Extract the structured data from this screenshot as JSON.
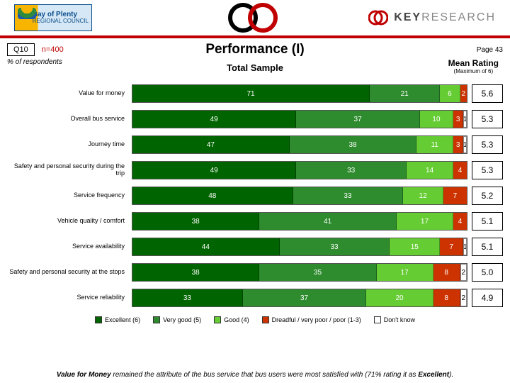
{
  "header": {
    "logo_text_top": "Bay of Plenty",
    "logo_text_bottom": "REGIONAL COUNCIL",
    "brand": "KEYRESEARCH",
    "circle_colors": [
      "#000000",
      "#c00000"
    ]
  },
  "meta": {
    "question": "Q10",
    "n": "n=400",
    "title": "Performance (I)",
    "page": "Page 43",
    "pct_label": "% of respondents",
    "subtitle": "Total Sample",
    "mean_rating_label": "Mean Rating",
    "mean_rating_sub": "(Maximum of 6)"
  },
  "chart": {
    "type": "stacked-bar-horizontal",
    "segment_colors": {
      "excellent": "#006400",
      "very_good": "#2e8b2e",
      "good": "#66cc33",
      "dreadful": "#cc3300",
      "dont_know": "#ffffff"
    },
    "segment_text_colors": {
      "excellent": "#ffffff",
      "very_good": "#ffffff",
      "good": "#ffffff",
      "dreadful": "#ffffff",
      "dont_know": "#000000"
    },
    "rows": [
      {
        "label": "Value for money",
        "values": {
          "excellent": 71,
          "very_good": 21,
          "good": 6,
          "dreadful": 2,
          "dont_know": 0
        },
        "mean": "5.6"
      },
      {
        "label": "Overall bus service",
        "values": {
          "excellent": 49,
          "very_good": 37,
          "good": 10,
          "dreadful": 3,
          "dont_know": 1
        },
        "mean": "5.3"
      },
      {
        "label": "Journey time",
        "values": {
          "excellent": 47,
          "very_good": 38,
          "good": 11,
          "dreadful": 3,
          "dont_know": 1
        },
        "mean": "5.3"
      },
      {
        "label": "Safety and personal security during the trip",
        "values": {
          "excellent": 49,
          "very_good": 33,
          "good": 14,
          "dreadful": 4,
          "dont_know": 0
        },
        "mean": "5.3"
      },
      {
        "label": "Service frequency",
        "values": {
          "excellent": 48,
          "very_good": 33,
          "good": 12,
          "dreadful": 7,
          "dont_know": 0
        },
        "mean": "5.2"
      },
      {
        "label": "Vehicle quality / comfort",
        "values": {
          "excellent": 38,
          "very_good": 41,
          "good": 17,
          "dreadful": 4,
          "dont_know": 0
        },
        "mean": "5.1"
      },
      {
        "label": "Service availability",
        "values": {
          "excellent": 44,
          "very_good": 33,
          "good": 15,
          "dreadful": 7,
          "dont_know": 1
        },
        "mean": "5.1"
      },
      {
        "label": "Safety and personal security at the stops",
        "values": {
          "excellent": 38,
          "very_good": 35,
          "good": 17,
          "dreadful": 8,
          "dont_know": 2
        },
        "mean": "5.0"
      },
      {
        "label": "Service reliability",
        "values": {
          "excellent": 33,
          "very_good": 37,
          "good": 20,
          "dreadful": 8,
          "dont_know": 2
        },
        "mean": "4.9"
      }
    ],
    "legend": [
      {
        "key": "excellent",
        "label": "Excellent (6)"
      },
      {
        "key": "very_good",
        "label": "Very good (5)"
      },
      {
        "key": "good",
        "label": "Good (4)"
      },
      {
        "key": "dreadful",
        "label": "Dreadful / very poor / poor (1-3)"
      },
      {
        "key": "dont_know",
        "label": "Don't know"
      }
    ]
  },
  "footer": {
    "pre": "Value for Money",
    "mid": " remained the attribute of the bus service that bus users were most satisfied with (71% rating it as ",
    "post": "Excellent",
    "end": ")."
  }
}
